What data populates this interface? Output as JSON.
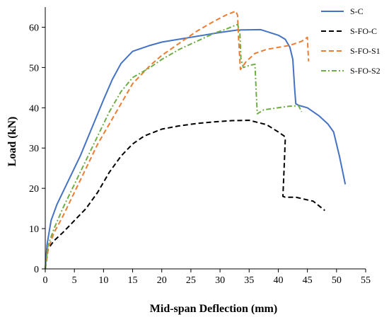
{
  "chart_data": {
    "type": "line",
    "xlabel": "Mid-span Deflection (mm)",
    "ylabel": "Load (kN)",
    "xlim": [
      0,
      55
    ],
    "ylim": [
      0,
      65
    ],
    "xticks": [
      0,
      5,
      10,
      15,
      20,
      25,
      30,
      35,
      40,
      45,
      50,
      55
    ],
    "yticks": [
      0,
      10,
      20,
      30,
      40,
      50,
      60
    ],
    "grid": false,
    "legend_position": "top-right",
    "series": [
      {
        "name": "S-C",
        "color": "#4472C4",
        "dash": "solid",
        "points": [
          [
            0,
            0
          ],
          [
            0.3,
            6
          ],
          [
            1,
            12
          ],
          [
            2,
            16
          ],
          [
            4,
            22
          ],
          [
            6,
            28
          ],
          [
            8,
            35
          ],
          [
            10,
            42
          ],
          [
            11.5,
            47
          ],
          [
            13,
            51
          ],
          [
            15,
            54
          ],
          [
            18,
            55.5
          ],
          [
            20,
            56.3
          ],
          [
            25,
            57.5
          ],
          [
            30,
            58.7
          ],
          [
            33,
            59.3
          ],
          [
            37,
            59.4
          ],
          [
            40,
            58
          ],
          [
            41.2,
            57
          ],
          [
            42,
            55
          ],
          [
            42.5,
            52
          ],
          [
            42.8,
            45
          ],
          [
            43,
            41
          ],
          [
            43.5,
            40.6
          ],
          [
            45,
            40
          ],
          [
            47,
            38
          ],
          [
            48.5,
            36
          ],
          [
            49.5,
            34
          ],
          [
            50.5,
            28
          ],
          [
            51.5,
            21
          ]
        ]
      },
      {
        "name": "S-FO-C",
        "color": "#000000",
        "dash": "dashed",
        "points": [
          [
            0,
            0
          ],
          [
            0.5,
            5
          ],
          [
            1.5,
            7
          ],
          [
            3,
            9
          ],
          [
            5,
            12
          ],
          [
            7,
            15
          ],
          [
            9,
            19
          ],
          [
            11,
            24
          ],
          [
            13,
            28
          ],
          [
            15,
            31
          ],
          [
            17,
            33
          ],
          [
            20,
            34.7
          ],
          [
            23,
            35.5
          ],
          [
            26,
            36.1
          ],
          [
            29,
            36.5
          ],
          [
            32,
            36.8
          ],
          [
            35,
            36.9
          ],
          [
            38,
            35.8
          ],
          [
            40,
            34
          ],
          [
            41,
            33
          ],
          [
            41.2,
            32
          ],
          [
            41,
            25
          ],
          [
            40.8,
            18
          ],
          [
            41.2,
            17.8
          ],
          [
            43,
            17.8
          ],
          [
            46,
            16.8
          ],
          [
            48,
            14.5
          ]
        ]
      },
      {
        "name": "S-FO-S1",
        "color": "#ED7D31",
        "dash": "dashed",
        "points": [
          [
            0,
            0
          ],
          [
            0.5,
            5
          ],
          [
            1.5,
            9
          ],
          [
            3,
            13
          ],
          [
            5,
            19
          ],
          [
            7,
            25
          ],
          [
            9,
            31
          ],
          [
            11,
            36
          ],
          [
            13,
            41
          ],
          [
            15,
            46
          ],
          [
            18,
            50.5
          ],
          [
            20,
            53
          ],
          [
            23,
            56
          ],
          [
            26,
            59
          ],
          [
            29,
            61.5
          ],
          [
            31,
            63
          ],
          [
            32.7,
            64
          ],
          [
            33,
            63
          ],
          [
            33.2,
            57
          ],
          [
            33.5,
            49.5
          ],
          [
            34.5,
            51.5
          ],
          [
            36,
            53.5
          ],
          [
            38,
            54.5
          ],
          [
            40,
            55
          ],
          [
            42,
            55.5
          ],
          [
            44,
            56.5
          ],
          [
            45,
            57.5
          ],
          [
            45.2,
            51.5
          ]
        ]
      },
      {
        "name": "S-FO-S2",
        "color": "#70AD47",
        "dash": "dashdot",
        "points": [
          [
            0,
            0
          ],
          [
            0.5,
            6
          ],
          [
            1.5,
            10
          ],
          [
            3,
            15
          ],
          [
            5,
            21
          ],
          [
            7,
            27
          ],
          [
            9,
            33
          ],
          [
            11,
            39
          ],
          [
            13,
            44
          ],
          [
            15,
            47.5
          ],
          [
            18,
            50
          ],
          [
            20,
            52
          ],
          [
            23,
            54.5
          ],
          [
            26,
            56.5
          ],
          [
            29,
            58.5
          ],
          [
            31,
            59.5
          ],
          [
            33,
            60.7
          ],
          [
            33.4,
            59
          ],
          [
            33.6,
            52
          ],
          [
            34,
            50
          ],
          [
            35,
            50.5
          ],
          [
            36,
            50.8
          ],
          [
            36.2,
            44
          ],
          [
            36.4,
            38.5
          ],
          [
            37.5,
            39.5
          ],
          [
            40,
            40
          ],
          [
            42,
            40.4
          ],
          [
            43.5,
            40.5
          ],
          [
            44,
            39
          ]
        ]
      }
    ]
  }
}
